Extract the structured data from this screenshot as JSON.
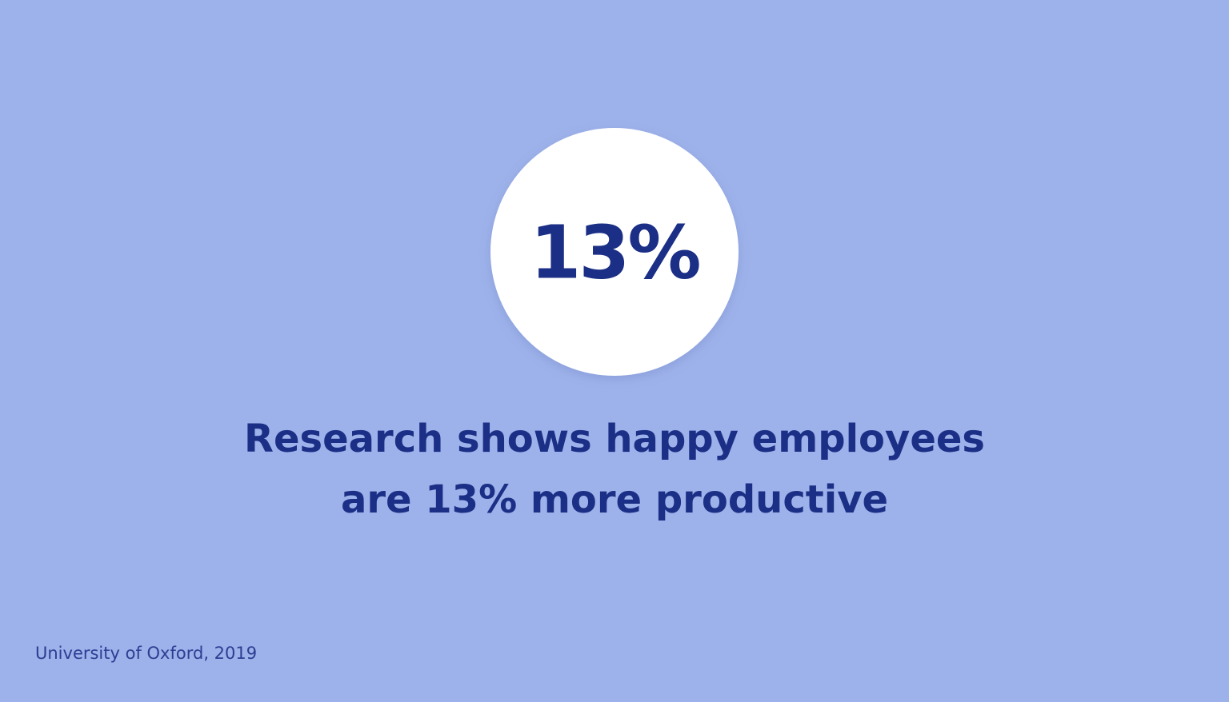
{
  "stat": "13%",
  "headline": [
    "Research shows happy employees",
    "are 13% more productive"
  ],
  "source": "University of Oxford, 2019"
}
